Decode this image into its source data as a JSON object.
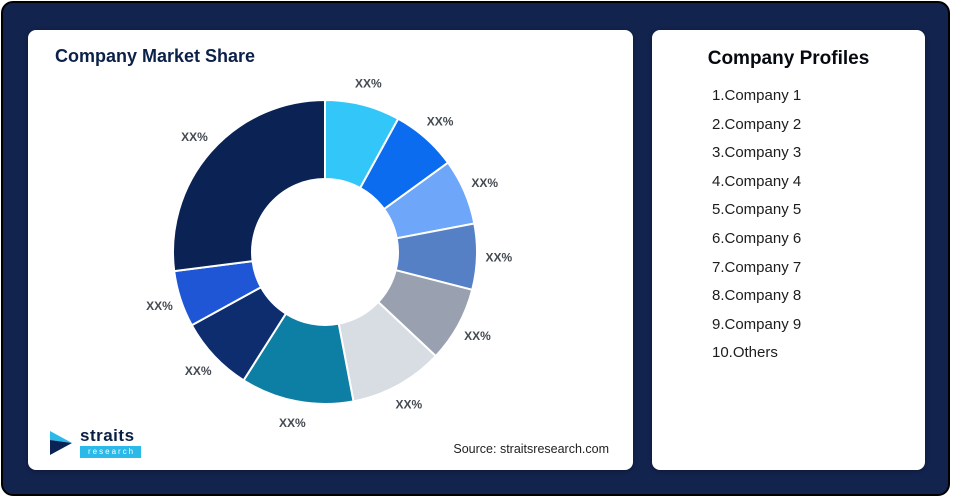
{
  "page": {
    "background_color": "#12234e",
    "card_color": "#ffffff"
  },
  "left_card": {
    "title": "Company Market Share",
    "source": "Source: straitsresearch.com",
    "logo": {
      "name": "straits",
      "sub": "research",
      "accent_color": "#2bb9ea",
      "dark_color": "#0a2354"
    }
  },
  "right_card": {
    "title": "Company Profiles",
    "items": [
      "1.Company 1",
      "2.Company 2",
      "3.Company 3",
      "4.Company 4",
      "5.Company 5",
      "6.Company 6",
      "7.Company 7",
      "8.Company 8",
      "9.Company 9",
      "10.Others"
    ]
  },
  "chart_data": {
    "type": "pie",
    "variant": "donut",
    "title": "Company Market Share",
    "direction": "clockwise",
    "start_angle_deg": 0,
    "inner_radius_ratio": 0.48,
    "data_label_position": "outside",
    "legend_position": "none",
    "note": "All slice labels shown as XX% placeholders in the image; values below are arc-size estimates in percent",
    "segments": [
      {
        "label": "XX%",
        "value": 8,
        "color": "#33c7f9"
      },
      {
        "label": "XX%",
        "value": 7,
        "color": "#0b6cf0"
      },
      {
        "label": "XX%",
        "value": 7,
        "color": "#6ea6f9"
      },
      {
        "label": "XX%",
        "value": 7,
        "color": "#5580c6"
      },
      {
        "label": "XX%",
        "value": 8,
        "color": "#99a1b0"
      },
      {
        "label": "XX%",
        "value": 10,
        "color": "#d8dce3"
      },
      {
        "label": "XX%",
        "value": 12,
        "color": "#0e7fa4"
      },
      {
        "label": "XX%",
        "value": 8,
        "color": "#0d2d6f"
      },
      {
        "label": "XX%",
        "value": 6,
        "color": "#1e56d6"
      },
      {
        "label": "XX%",
        "value": 27,
        "color": "#0a2354"
      }
    ]
  }
}
